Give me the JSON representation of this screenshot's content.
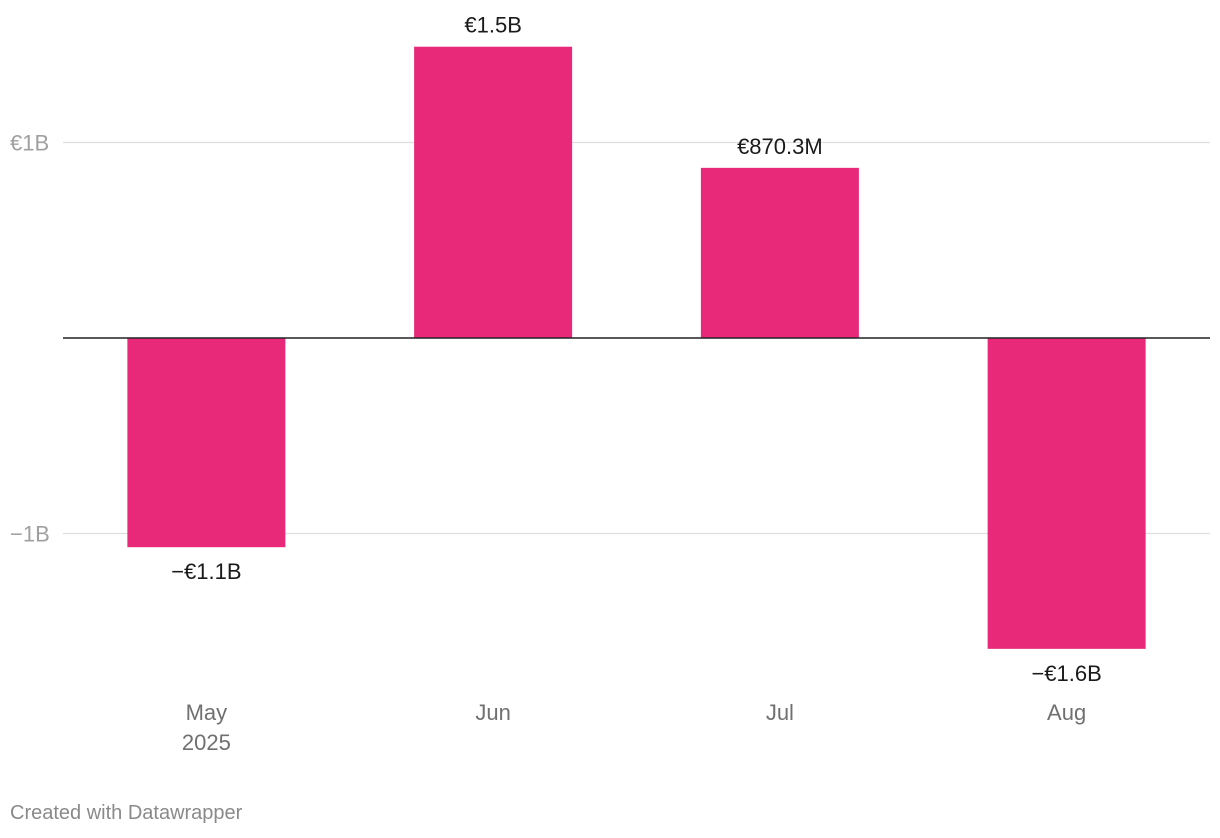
{
  "chart_data": {
    "type": "bar",
    "categories": [
      "May",
      "Jun",
      "Jul",
      "Aug"
    ],
    "category_sublabels": [
      "2025",
      "",
      "",
      ""
    ],
    "values": [
      -1.07,
      1.49,
      0.8703,
      -1.59
    ],
    "value_labels": [
      "−€1.1B",
      "€1.5B",
      "€870.3M",
      "−€1.6B"
    ],
    "unit": "EUR billions",
    "yticks": [
      1,
      -1
    ],
    "ytick_labels": [
      "€1B",
      "−1B"
    ],
    "ylim": [
      -1.75,
      1.75
    ],
    "grid": true,
    "bar_color": "#e8297a",
    "title": "",
    "xlabel": "",
    "ylabel": ""
  },
  "footer": {
    "credit": "Created with Datawrapper"
  }
}
